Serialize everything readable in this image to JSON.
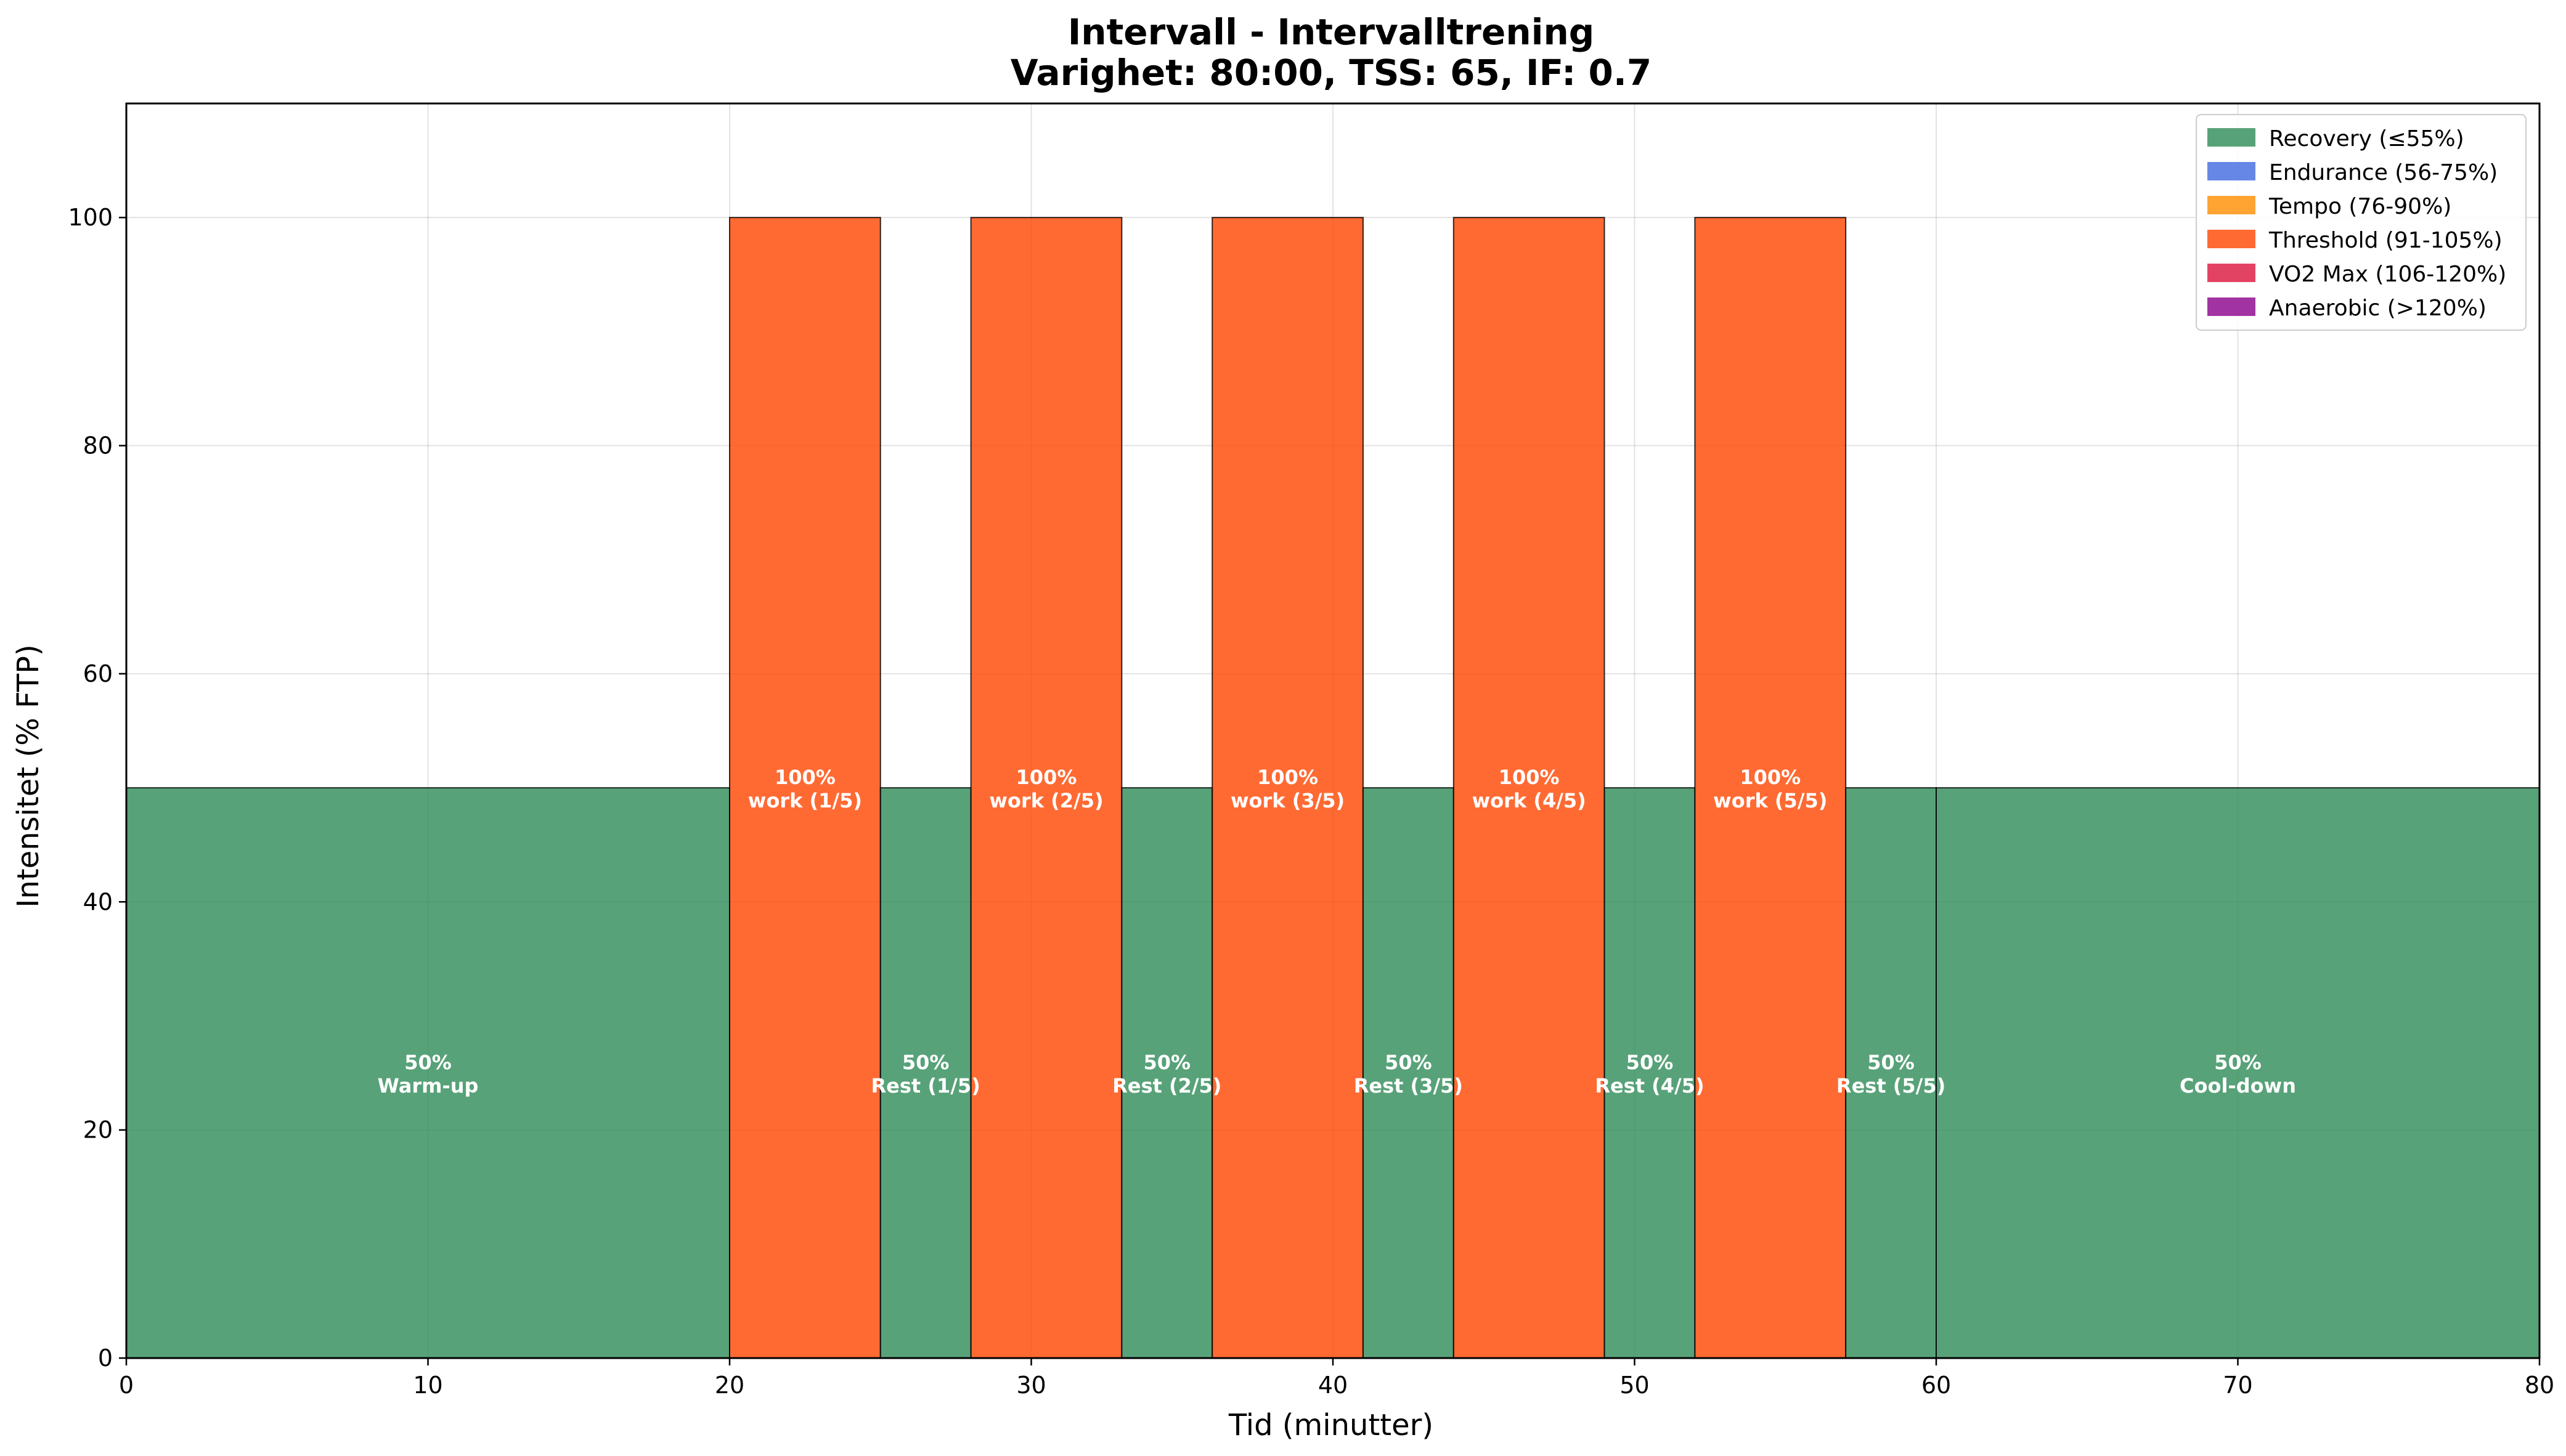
{
  "chart_data": {
    "type": "bar",
    "title": "Intervall - Intervalltrening",
    "subtitle": "Varighet: 80:00, TSS: 65, IF: 0.7",
    "xlabel": "Tid (minutter)",
    "ylabel": "Intensitet (% FTP)",
    "xlim": [
      0,
      80
    ],
    "ylim": [
      0,
      110
    ],
    "xticks": [
      0,
      10,
      20,
      30,
      40,
      50,
      60,
      70,
      80
    ],
    "yticks": [
      0,
      20,
      40,
      60,
      80,
      100
    ],
    "grid": true,
    "legend_position": "top-right",
    "zones": [
      {
        "name": "Recovery (≤55%)",
        "color": "#2e8b57"
      },
      {
        "name": "Endurance (56-75%)",
        "color": "#4169e1"
      },
      {
        "name": "Tempo (76-90%)",
        "color": "#ff8c00"
      },
      {
        "name": "Threshold (91-105%)",
        "color": "#ff4500"
      },
      {
        "name": "VO2 Max (106-120%)",
        "color": "#dc143c"
      },
      {
        "name": "Anaerobic (>120%)",
        "color": "#8b008b"
      }
    ],
    "segments": [
      {
        "start": 0,
        "end": 20,
        "value": 50,
        "zone": 0,
        "pct": "50%",
        "label": "Warm-up"
      },
      {
        "start": 20,
        "end": 25,
        "value": 100,
        "zone": 3,
        "pct": "100%",
        "label": "work (1/5)"
      },
      {
        "start": 25,
        "end": 28,
        "value": 50,
        "zone": 0,
        "pct": "50%",
        "label": "Rest (1/5)"
      },
      {
        "start": 28,
        "end": 33,
        "value": 100,
        "zone": 3,
        "pct": "100%",
        "label": "work (2/5)"
      },
      {
        "start": 33,
        "end": 36,
        "value": 50,
        "zone": 0,
        "pct": "50%",
        "label": "Rest (2/5)"
      },
      {
        "start": 36,
        "end": 41,
        "value": 100,
        "zone": 3,
        "pct": "100%",
        "label": "work (3/5)"
      },
      {
        "start": 41,
        "end": 44,
        "value": 50,
        "zone": 0,
        "pct": "50%",
        "label": "Rest (3/5)"
      },
      {
        "start": 44,
        "end": 49,
        "value": 100,
        "zone": 3,
        "pct": "100%",
        "label": "work (4/5)"
      },
      {
        "start": 49,
        "end": 52,
        "value": 50,
        "zone": 0,
        "pct": "50%",
        "label": "Rest (4/5)"
      },
      {
        "start": 52,
        "end": 57,
        "value": 100,
        "zone": 3,
        "pct": "100%",
        "label": "work (5/5)"
      },
      {
        "start": 57,
        "end": 60,
        "value": 50,
        "zone": 0,
        "pct": "50%",
        "label": "Rest (5/5)"
      },
      {
        "start": 60,
        "end": 80,
        "value": 50,
        "zone": 0,
        "pct": "50%",
        "label": "Cool-down"
      }
    ]
  }
}
